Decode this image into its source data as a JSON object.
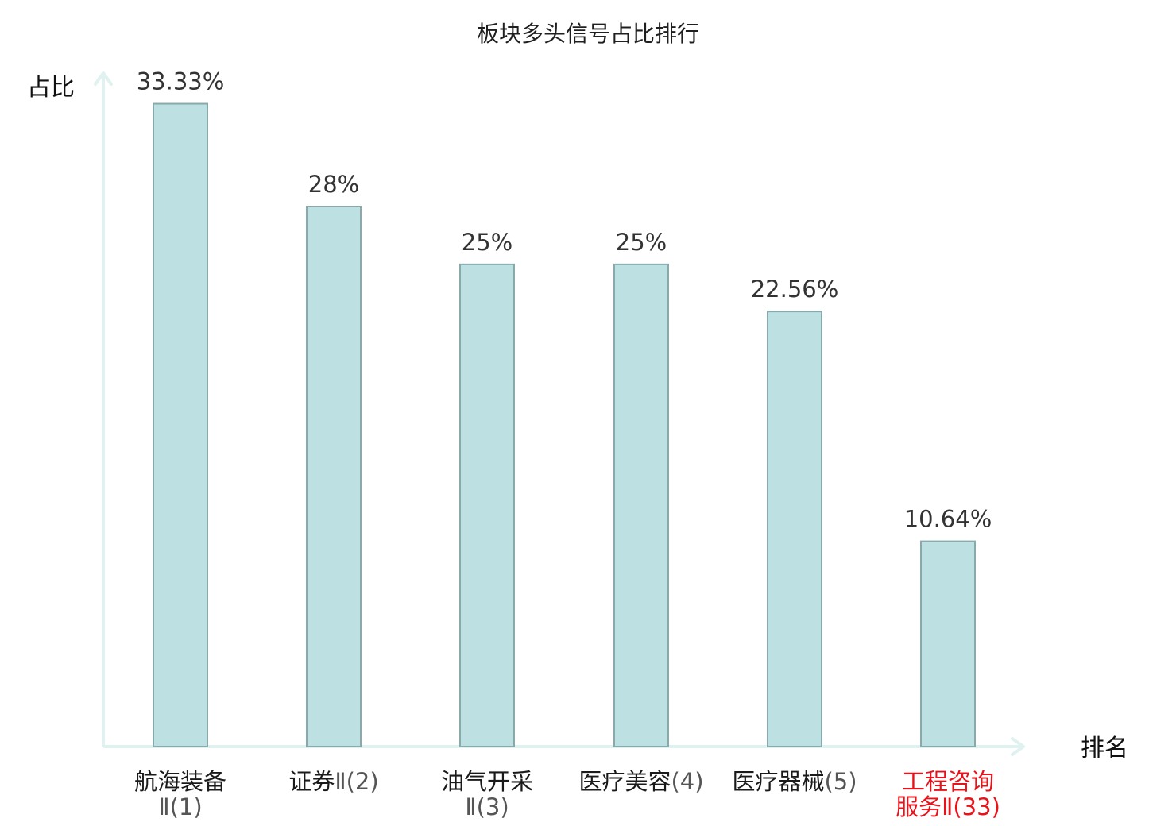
{
  "chart_data": {
    "type": "bar",
    "title": "板块多头信号占比排行",
    "xlabel": "排名",
    "ylabel": "占比",
    "ylim": [
      0,
      35
    ],
    "grid": false,
    "categories": [
      {
        "name": "航海装备",
        "rank": "Ⅱ(1)",
        "highlight": false
      },
      {
        "name": "证券",
        "rank": "Ⅱ(2)",
        "highlight": false
      },
      {
        "name": "油气开采",
        "rank": "Ⅱ(3)",
        "highlight": false
      },
      {
        "name": "医疗美容",
        "rank": "(4)",
        "highlight": false
      },
      {
        "name": "医疗器械",
        "rank": "(5)",
        "highlight": false
      },
      {
        "name": "工程咨询服务",
        "rank": "Ⅱ(33)",
        "highlight": true
      }
    ],
    "values": [
      33.33,
      28,
      25,
      25,
      22.56,
      10.64
    ],
    "value_labels": [
      "33.33%",
      "28%",
      "25%",
      "25%",
      "22.56%",
      "10.64%"
    ],
    "colors": {
      "bar_fill": "#bde1e3",
      "bar_stroke": "#8aa9ab",
      "axis": "#dff2ef",
      "label_normal": "#1a1a1a",
      "label_highlight": "#e8131a",
      "rank_normal": "#555555"
    }
  }
}
